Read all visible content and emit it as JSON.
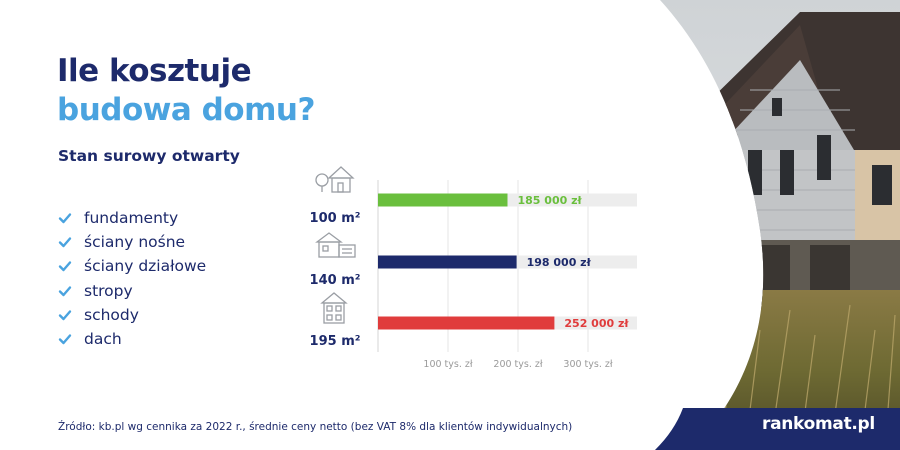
{
  "title_line1": "Ile kosztuje",
  "title_line2": "budowa domu?",
  "subtitle": "Stan surowy otwarty",
  "checklist": [
    "fundamenty",
    "ściany nośne",
    "ściany działowe",
    "stropy",
    "schody",
    "dach"
  ],
  "source": "Źródło: kb.pl wg cennika za 2022 r., średnie ceny netto (bez VAT 8% dla klientów indywidualnych)",
  "brand": "rankomat.pl",
  "icons": [
    "house-with-tree-icon",
    "house-with-garage-icon",
    "two-story-house-icon",
    "checkmark-icon"
  ],
  "colors": {
    "navy": "#1d2a6b",
    "light_blue": "#4aa3df",
    "green": "#6abf3d",
    "red": "#e03c3c",
    "track": "#ededed"
  },
  "chart_data": {
    "type": "bar",
    "orientation": "horizontal",
    "categories": [
      "100 m²",
      "140 m²",
      "195 m²"
    ],
    "values": [
      185000,
      198000,
      252000
    ],
    "value_labels": [
      "185 000 zł",
      "198 000 zł",
      "252 000 zł"
    ],
    "bar_colors": [
      "#6abf3d",
      "#1d2a6b",
      "#e03c3c"
    ],
    "xlim": [
      0,
      370000
    ],
    "x_ticks": [
      100000,
      200000,
      300000
    ],
    "x_tick_labels": [
      "100 tys. zł",
      "200 tys. zł",
      "300 tys. zł"
    ],
    "grid": true
  }
}
